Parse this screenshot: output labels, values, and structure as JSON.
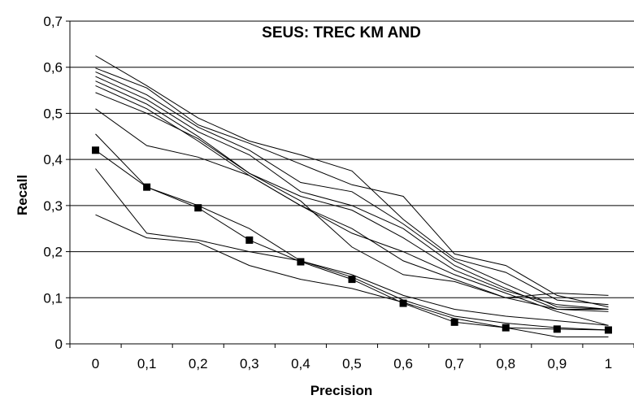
{
  "chart_data": {
    "type": "line",
    "title": "SEUS: TREC KM AND",
    "xlabel": "Precision",
    "ylabel": "Recall",
    "categories": [
      "0",
      "0,1",
      "0,2",
      "0,3",
      "0,4",
      "0,5",
      "0,6",
      "0,7",
      "0,8",
      "0,9",
      "1"
    ],
    "ylim": [
      0,
      0.7
    ],
    "yticks": [
      "0",
      "0,1",
      "0,2",
      "0,3",
      "0,4",
      "0,5",
      "0,6",
      "0,7"
    ],
    "grid": "horizontal",
    "legend": "none",
    "series": [
      {
        "values": [
          0.625,
          0.56,
          0.49,
          0.44,
          0.41,
          0.375,
          0.27,
          0.185,
          0.155,
          0.095,
          0.085
        ]
      },
      {
        "values": [
          0.598,
          0.555,
          0.475,
          0.435,
          0.39,
          0.345,
          0.32,
          0.195,
          0.17,
          0.105,
          0.08
        ]
      },
      {
        "values": [
          0.59,
          0.54,
          0.47,
          0.42,
          0.35,
          0.33,
          0.26,
          0.18,
          0.13,
          0.08,
          0.075
        ]
      },
      {
        "values": [
          0.58,
          0.53,
          0.46,
          0.41,
          0.33,
          0.3,
          0.25,
          0.17,
          0.12,
          0.075,
          0.07
        ]
      },
      {
        "values": [
          0.57,
          0.52,
          0.45,
          0.37,
          0.32,
          0.29,
          0.23,
          0.16,
          0.115,
          0.085,
          0.075
        ]
      },
      {
        "values": [
          0.56,
          0.51,
          0.44,
          0.365,
          0.3,
          0.24,
          0.2,
          0.15,
          0.11,
          0.07,
          0.04
        ]
      },
      {
        "values": [
          0.545,
          0.5,
          0.445,
          0.37,
          0.31,
          0.21,
          0.15,
          0.135,
          0.1,
          0.075,
          0.075
        ]
      },
      {
        "values": [
          0.51,
          0.43,
          0.405,
          0.365,
          0.3,
          0.25,
          0.18,
          0.14,
          0.1,
          0.11,
          0.105
        ]
      },
      {
        "values": [
          0.455,
          0.34,
          0.3,
          0.25,
          0.18,
          0.145,
          0.095,
          0.06,
          0.045,
          0.035,
          0.03
        ]
      },
      {
        "values": [
          0.38,
          0.24,
          0.225,
          0.2,
          0.18,
          0.15,
          0.105,
          0.075,
          0.06,
          0.05,
          0.04
        ]
      },
      {
        "values": [
          0.28,
          0.23,
          0.22,
          0.17,
          0.14,
          0.12,
          0.09,
          0.055,
          0.035,
          0.015,
          0.015
        ]
      },
      {
        "values": [
          0.42,
          0.34,
          0.295,
          0.225,
          0.178,
          0.14,
          0.088,
          0.047,
          0.035,
          0.032,
          0.03
        ],
        "marker": "square",
        "color": "#000000"
      }
    ]
  }
}
